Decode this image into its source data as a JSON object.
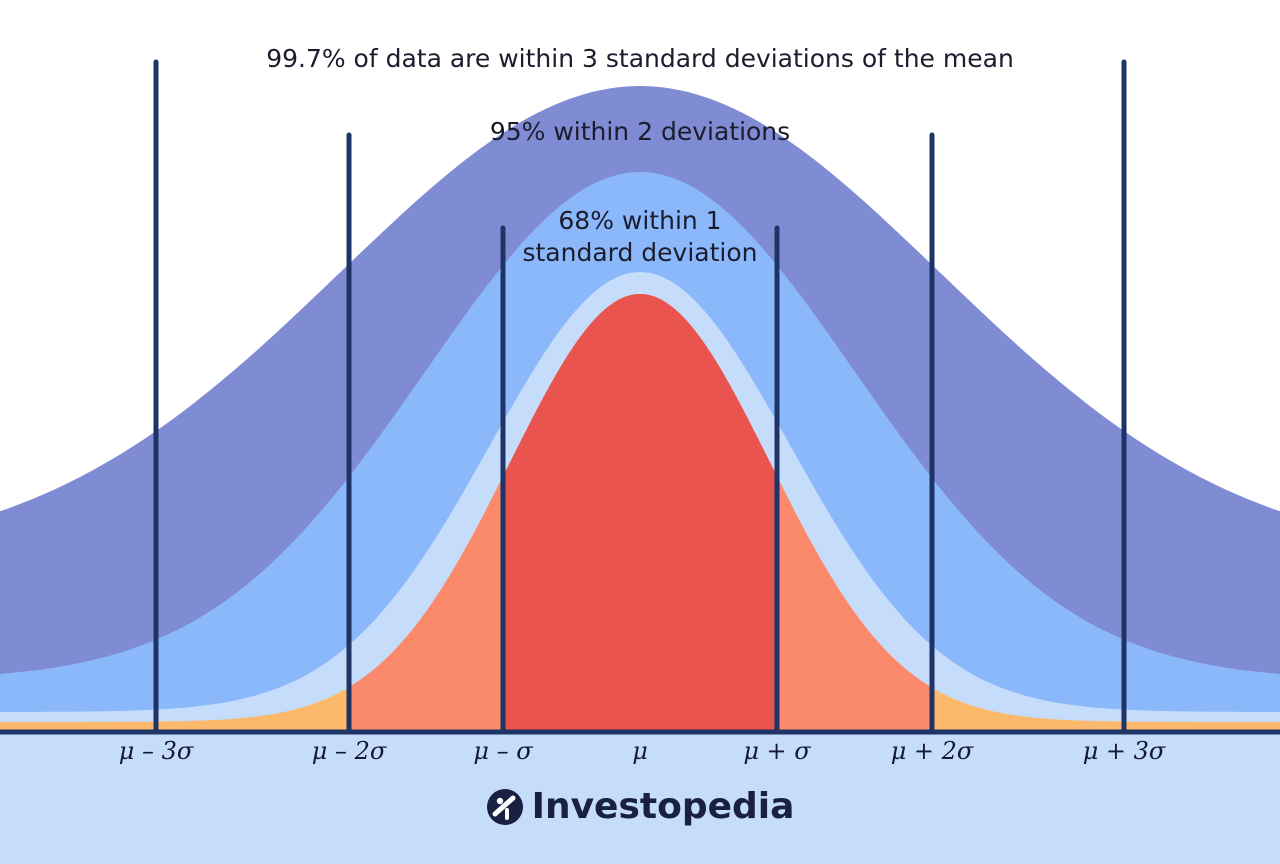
{
  "annotations": {
    "within_3": "99.7% of data are within 3 standard deviations of the mean",
    "within_2": "95% within 2 deviations",
    "within_1_line1": "68% within 1",
    "within_1_line2": "standard deviation"
  },
  "axis_labels": [
    "μ – 3σ",
    "μ – 2σ",
    "μ – σ",
    "μ",
    "μ + σ",
    "μ + 2σ",
    "μ + 3σ"
  ],
  "brand": {
    "name": "Investopedia",
    "logo_icon": "investopedia-logo-icon"
  },
  "colors": {
    "background_bottom": "#c5dcfb",
    "band_3sd": "#7f8bd3",
    "band_2sd": "#8bb8fb",
    "band_1sd": "#c5dcfb",
    "curve_tail_3sd": "#fdb96b",
    "curve_tail_2sd": "#fb8a6c",
    "curve_center_1sd": "#e9544f",
    "lines": "#1f3466"
  }
}
